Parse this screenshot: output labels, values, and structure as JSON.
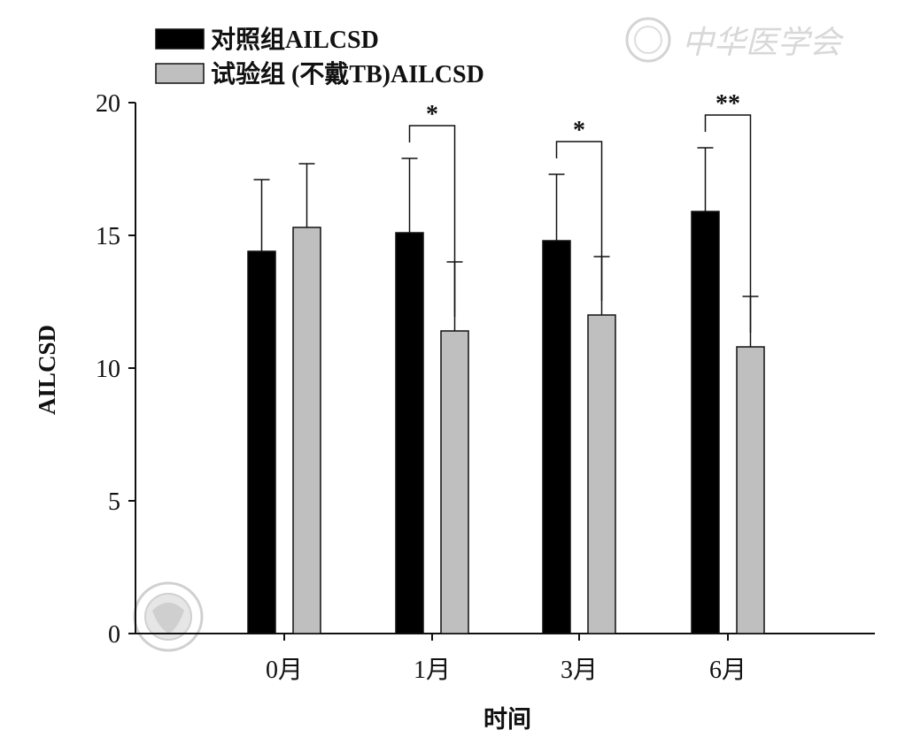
{
  "chart_data": {
    "type": "bar",
    "title": "",
    "xlabel": "时间",
    "ylabel": "AILCSD",
    "ylim": [
      0,
      20
    ],
    "yticks": [
      0,
      5,
      10,
      15,
      20
    ],
    "categories": [
      "0月",
      "1月",
      "3月",
      "6月"
    ],
    "series": [
      {
        "name": "对照组AILCSD",
        "color": "#000000",
        "values": [
          14.4,
          15.1,
          14.8,
          15.9
        ],
        "errors": [
          2.7,
          2.8,
          2.5,
          2.4
        ]
      },
      {
        "name": "试验组 (不戴TB)AILCSD",
        "color": "#bfbfbf",
        "values": [
          15.3,
          11.4,
          12.0,
          10.8
        ],
        "errors": [
          2.4,
          2.6,
          2.2,
          1.9
        ]
      }
    ],
    "significance": [
      {
        "category": "1月",
        "label": "*"
      },
      {
        "category": "3月",
        "label": "*"
      },
      {
        "category": "6月",
        "label": "**"
      }
    ],
    "legend_position": "top-left",
    "grid": false
  },
  "watermark": {
    "text": "中华医学会",
    "icon": "seal-icon"
  }
}
